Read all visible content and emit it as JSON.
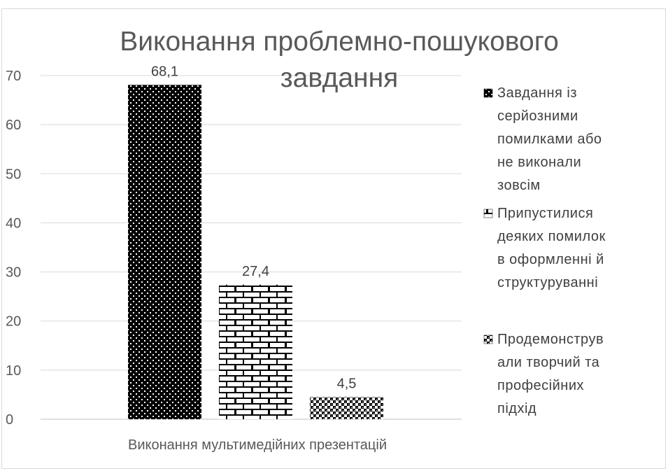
{
  "chart_data": {
    "type": "bar",
    "title_lines": [
      "Виконання проблемно-пошукового",
      "завдання"
    ],
    "categories": [
      "Виконання мультимедійних презентацій"
    ],
    "ylim": [
      0,
      70
    ],
    "yticks": [
      0,
      10,
      20,
      30,
      40,
      50,
      60,
      70
    ],
    "grid": true,
    "legend_position": "right",
    "series": [
      {
        "name": "Завдання із серйозними помилками або не виконали зовсім",
        "legend_lines": [
          "Завдання із",
          "серйозними",
          "помилками або",
          "не виконали",
          "зовсім"
        ],
        "values": [
          68.1
        ],
        "label": "68,1",
        "pattern": "dots",
        "color": "#000000"
      },
      {
        "name": "Припустилися деяких помилок в оформленні й структуруванні",
        "legend_lines": [
          "Припустилися",
          "деяких помилок",
          "в оформленні й",
          "структуруванні"
        ],
        "values": [
          27.4
        ],
        "label": "27,4",
        "pattern": "bricks",
        "color": "#000000"
      },
      {
        "name": "Продемонстрували творчий та професійних підхід",
        "legend_lines": [
          "Продемонструв",
          "али творчий та",
          "професійних",
          "підхід"
        ],
        "values": [
          4.5
        ],
        "label": "4,5",
        "pattern": "checker",
        "color": "#000000"
      }
    ]
  }
}
